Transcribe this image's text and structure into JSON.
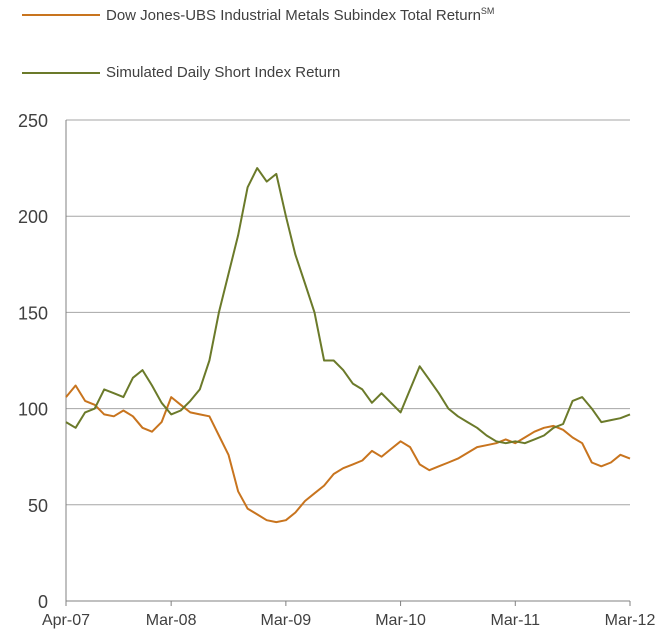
{
  "chart_data": {
    "type": "line",
    "ylim": [
      0,
      250
    ],
    "yticks": [
      "0",
      "50",
      "100",
      "150",
      "200",
      "250"
    ],
    "xlim": [
      "2007-04",
      "2012-03"
    ],
    "xticks": [
      {
        "date": "2007-04",
        "label": "Apr-07"
      },
      {
        "date": "2008-03",
        "label": "Mar-08"
      },
      {
        "date": "2009-03",
        "label": "Mar-09"
      },
      {
        "date": "2010-03",
        "label": "Mar-10"
      },
      {
        "date": "2011-03",
        "label": "Mar-11"
      },
      {
        "date": "2012-03",
        "label": "Mar-12"
      }
    ],
    "grid": "horizontal",
    "legend_position": "top",
    "series": [
      {
        "name": "Dow Jones-UBS Industrial Metals Subindex Total Return",
        "name_superscript": "SM",
        "color": "#c8741e",
        "x": [
          "2007-04",
          "2007-05",
          "2007-06",
          "2007-07",
          "2007-08",
          "2007-09",
          "2007-10",
          "2007-11",
          "2007-12",
          "2008-01",
          "2008-02",
          "2008-03",
          "2008-04",
          "2008-05",
          "2008-06",
          "2008-07",
          "2008-08",
          "2008-09",
          "2008-10",
          "2008-11",
          "2008-12",
          "2009-01",
          "2009-02",
          "2009-03",
          "2009-04",
          "2009-05",
          "2009-06",
          "2009-07",
          "2009-08",
          "2009-09",
          "2009-10",
          "2009-11",
          "2009-12",
          "2010-01",
          "2010-02",
          "2010-03",
          "2010-04",
          "2010-05",
          "2010-06",
          "2010-07",
          "2010-08",
          "2010-09",
          "2010-10",
          "2010-11",
          "2010-12",
          "2011-01",
          "2011-02",
          "2011-03",
          "2011-04",
          "2011-05",
          "2011-06",
          "2011-07",
          "2011-08",
          "2011-09",
          "2011-10",
          "2011-11",
          "2011-12",
          "2012-01",
          "2012-02",
          "2012-03"
        ],
        "y": [
          106,
          112,
          104,
          102,
          97,
          96,
          99,
          96,
          90,
          88,
          93,
          106,
          102,
          98,
          97,
          96,
          86,
          76,
          57,
          48,
          45,
          42,
          41,
          42,
          46,
          52,
          56,
          60,
          66,
          69,
          71,
          73,
          78,
          75,
          79,
          83,
          80,
          71,
          68,
          70,
          72,
          74,
          77,
          80,
          81,
          82,
          84,
          82,
          85,
          88,
          90,
          91,
          89,
          85,
          82,
          72,
          70,
          72,
          76,
          74
        ]
      },
      {
        "name": "Simulated Daily Short Index Return",
        "color": "#6b7a2a",
        "x": [
          "2007-04",
          "2007-05",
          "2007-06",
          "2007-07",
          "2007-08",
          "2007-09",
          "2007-10",
          "2007-11",
          "2007-12",
          "2008-01",
          "2008-02",
          "2008-03",
          "2008-04",
          "2008-05",
          "2008-06",
          "2008-07",
          "2008-08",
          "2008-09",
          "2008-10",
          "2008-11",
          "2008-12",
          "2009-01",
          "2009-02",
          "2009-03",
          "2009-04",
          "2009-05",
          "2009-06",
          "2009-07",
          "2009-08",
          "2009-09",
          "2009-10",
          "2009-11",
          "2009-12",
          "2010-01",
          "2010-02",
          "2010-03",
          "2010-04",
          "2010-05",
          "2010-06",
          "2010-07",
          "2010-08",
          "2010-09",
          "2010-10",
          "2010-11",
          "2010-12",
          "2011-01",
          "2011-02",
          "2011-03",
          "2011-04",
          "2011-05",
          "2011-06",
          "2011-07",
          "2011-08",
          "2011-09",
          "2011-10",
          "2011-11",
          "2011-12",
          "2012-01",
          "2012-02",
          "2012-03"
        ],
        "y": [
          93,
          90,
          98,
          100,
          110,
          108,
          106,
          116,
          120,
          112,
          103,
          97,
          99,
          104,
          110,
          125,
          150,
          170,
          190,
          215,
          225,
          218,
          222,
          200,
          180,
          165,
          150,
          125,
          125,
          120,
          113,
          110,
          103,
          108,
          103,
          98,
          110,
          122,
          115,
          108,
          100,
          96,
          93,
          90,
          86,
          83,
          82,
          83,
          82,
          84,
          86,
          90,
          92,
          104,
          106,
          100,
          93,
          94,
          95,
          97
        ]
      }
    ]
  }
}
